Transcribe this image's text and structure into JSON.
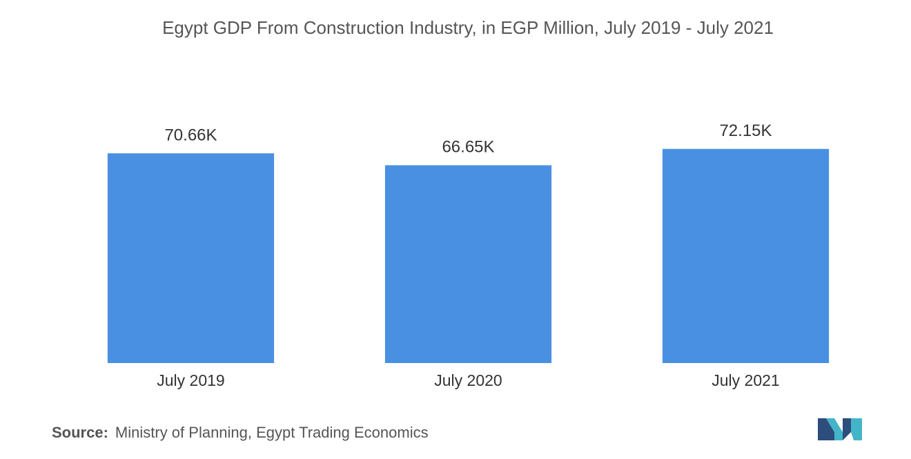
{
  "chart_data": {
    "type": "bar",
    "title": "Egypt GDP From Construction Industry, in EGP Million, July 2019 - July 2021",
    "categories": [
      "July 2019",
      "July 2020",
      "July 2021"
    ],
    "values": [
      70660,
      66650,
      72150
    ],
    "value_labels": [
      "70.66K",
      "66.65K",
      "72.15K"
    ],
    "color": "#4a90e2",
    "ylim": [
      0,
      80000
    ],
    "grid": false
  },
  "source": {
    "label": "Source:",
    "text": "Ministry of Planning, Egypt Trading Economics"
  }
}
